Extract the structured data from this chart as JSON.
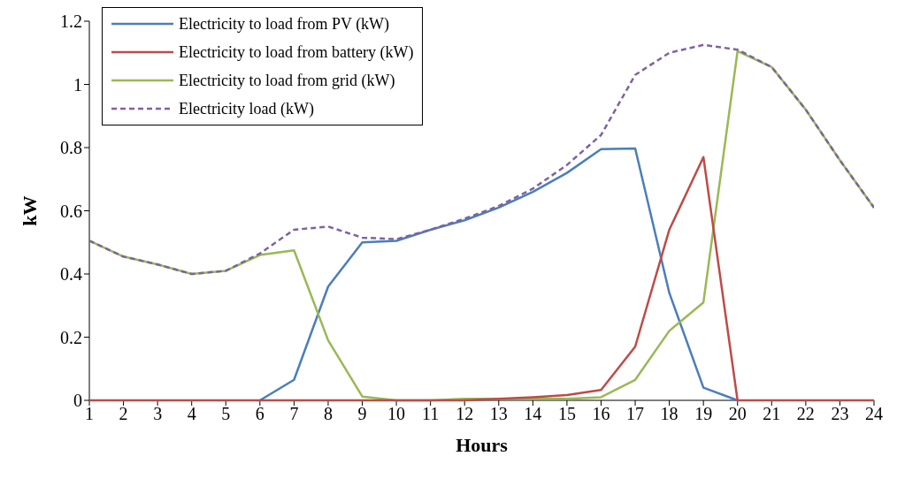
{
  "chart_data": {
    "type": "line",
    "xlabel": "Hours",
    "ylabel": "kW",
    "x": [
      1,
      2,
      3,
      4,
      5,
      6,
      7,
      8,
      9,
      10,
      11,
      12,
      13,
      14,
      15,
      16,
      17,
      18,
      19,
      20,
      21,
      22,
      23,
      24
    ],
    "xlim": [
      1,
      24
    ],
    "xticks": [
      1,
      2,
      3,
      4,
      5,
      6,
      7,
      8,
      9,
      10,
      11,
      12,
      13,
      14,
      15,
      16,
      17,
      18,
      19,
      20,
      21,
      22,
      23,
      24
    ],
    "ylim": [
      0,
      1.2
    ],
    "yticks": [
      0,
      0.2,
      0.4,
      0.6,
      0.8,
      1,
      1.2
    ],
    "grid": false,
    "legend": "top left",
    "marker": "none",
    "series": [
      {
        "name": "Electricity to load from PV (kW)",
        "color": "#4a7ebb",
        "line_style": "solid",
        "values": [
          null,
          null,
          null,
          null,
          null,
          0,
          0.065,
          0.36,
          0.5,
          0.505,
          0.54,
          0.57,
          0.61,
          0.66,
          0.72,
          0.795,
          0.797,
          0.34,
          0.04,
          0,
          null,
          null,
          null,
          null
        ]
      },
      {
        "name": "Electricity to load from battery (kW)",
        "color": "#be4b48",
        "line_style": "solid",
        "values": [
          0,
          0,
          0,
          0,
          0,
          0,
          0,
          0,
          0,
          0,
          0,
          0,
          0.005,
          0.01,
          0.017,
          0.033,
          0.17,
          0.54,
          0.77,
          0,
          0,
          0,
          0,
          0
        ]
      },
      {
        "name": "Electricity to load from grid (kW)",
        "color": "#98b954",
        "line_style": "solid",
        "values": [
          0.505,
          0.455,
          0.43,
          0.4,
          0.41,
          0.46,
          0.475,
          0.19,
          0.012,
          0,
          0,
          0.005,
          0.005,
          0.005,
          0.005,
          0.01,
          0.065,
          0.22,
          0.31,
          1.105,
          1.055,
          0.92,
          0.76,
          0.61
        ]
      },
      {
        "name": "Electricity load (kW)",
        "color": "#7e62a1",
        "line_style": "dashed",
        "values": [
          0.505,
          0.455,
          0.43,
          0.4,
          0.41,
          0.465,
          0.54,
          0.55,
          0.515,
          0.51,
          0.54,
          0.575,
          0.615,
          0.67,
          0.745,
          0.84,
          1.03,
          1.1,
          1.125,
          1.11,
          1.055,
          0.92,
          0.76,
          0.61
        ]
      }
    ]
  }
}
